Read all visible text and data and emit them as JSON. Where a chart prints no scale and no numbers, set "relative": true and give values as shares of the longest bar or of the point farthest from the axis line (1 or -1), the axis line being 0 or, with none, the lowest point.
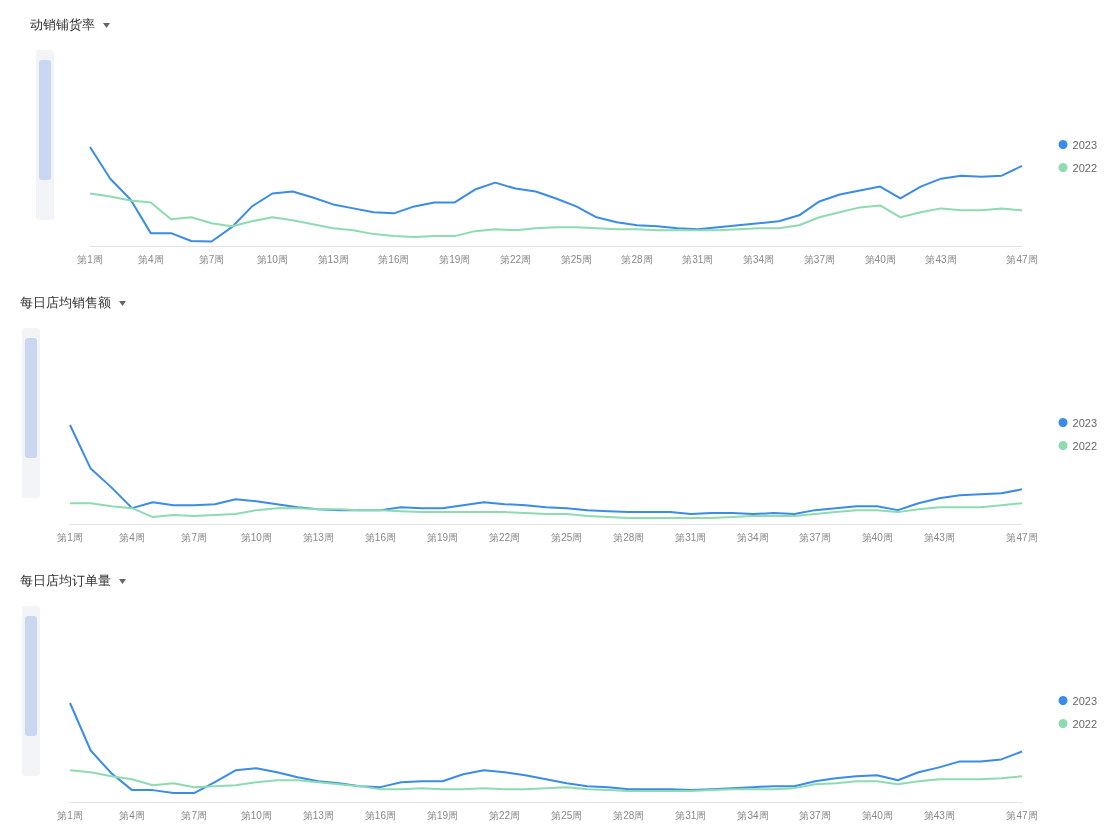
{
  "chart_data": [
    {
      "type": "line",
      "title": "动销铺货率",
      "relative": true,
      "legend": "right",
      "marker": "none",
      "categories": [
        "第1周",
        null,
        null,
        "第4周",
        null,
        null,
        "第7周",
        null,
        null,
        "第10周",
        null,
        null,
        "第13周",
        null,
        null,
        "第16周",
        null,
        null,
        "第19周",
        null,
        null,
        "第22周",
        null,
        null,
        "第25周",
        null,
        null,
        "第28周",
        null,
        null,
        "第31周",
        null,
        null,
        "第34周",
        null,
        null,
        "第37周",
        null,
        null,
        "第40周",
        null,
        null,
        "第43周",
        null,
        null,
        null,
        "第47周"
      ],
      "series": [
        {
          "name": "2023",
          "color": "#3a8ce6",
          "values": [
            1,
            0.68,
            0.47,
            0.13,
            0.13,
            0.05,
            0.045,
            0.19,
            0.4,
            0.53,
            0.55,
            0.49,
            0.42,
            0.38,
            0.34,
            0.33,
            0.4,
            0.44,
            0.44,
            0.57,
            0.64,
            0.58,
            0.55,
            0.48,
            0.4,
            0.29,
            0.24,
            0.21,
            0.2,
            0.18,
            0.17,
            0.19,
            0.21,
            0.23,
            0.25,
            0.31,
            0.45,
            0.52,
            0.56,
            0.6,
            0.48,
            0.6,
            0.68,
            0.71,
            0.7,
            0.71,
            0.81
          ]
        },
        {
          "name": "2022",
          "color": "#8edbb0",
          "values": [
            0.53,
            0.5,
            0.46,
            0.44,
            0.27,
            0.29,
            0.23,
            0.2,
            0.25,
            0.29,
            0.26,
            0.22,
            0.18,
            0.16,
            0.12,
            0.1,
            0.09,
            0.1,
            0.1,
            0.15,
            0.17,
            0.16,
            0.18,
            0.19,
            0.19,
            0.18,
            0.17,
            0.17,
            0.16,
            0.16,
            0.16,
            0.16,
            0.17,
            0.18,
            0.18,
            0.21,
            0.29,
            0.34,
            0.39,
            0.41,
            0.29,
            0.34,
            0.38,
            0.36,
            0.36,
            0.38,
            0.36
          ]
        }
      ]
    },
    {
      "type": "line",
      "title": "每日店均销售额",
      "relative": true,
      "legend": "right",
      "marker": "none",
      "categories": [
        "第1周",
        null,
        null,
        "第4周",
        null,
        null,
        "第7周",
        null,
        null,
        "第10周",
        null,
        null,
        "第13周",
        null,
        null,
        "第16周",
        null,
        null,
        "第19周",
        null,
        null,
        "第22周",
        null,
        null,
        "第25周",
        null,
        null,
        "第28周",
        null,
        null,
        "第31周",
        null,
        null,
        "第34周",
        null,
        null,
        "第37周",
        null,
        null,
        "第40周",
        null,
        null,
        "第43周",
        null,
        null,
        null,
        "第47周"
      ],
      "series": [
        {
          "name": "2023",
          "color": "#3a8ce6",
          "values": [
            1,
            0.56,
            0.37,
            0.16,
            0.22,
            0.19,
            0.19,
            0.2,
            0.25,
            0.23,
            0.2,
            0.17,
            0.15,
            0.14,
            0.14,
            0.14,
            0.17,
            0.16,
            0.16,
            0.19,
            0.22,
            0.2,
            0.19,
            0.17,
            0.16,
            0.14,
            0.13,
            0.12,
            0.12,
            0.12,
            0.1,
            0.11,
            0.11,
            0.1,
            0.11,
            0.1,
            0.14,
            0.16,
            0.18,
            0.18,
            0.14,
            0.21,
            0.26,
            0.29,
            0.3,
            0.31,
            0.35
          ]
        },
        {
          "name": "2022",
          "color": "#8edbb0",
          "values": [
            0.21,
            0.21,
            0.18,
            0.16,
            0.07,
            0.09,
            0.08,
            0.09,
            0.1,
            0.14,
            0.16,
            0.16,
            0.15,
            0.15,
            0.14,
            0.14,
            0.13,
            0.12,
            0.12,
            0.12,
            0.12,
            0.12,
            0.11,
            0.1,
            0.1,
            0.08,
            0.07,
            0.06,
            0.06,
            0.06,
            0.06,
            0.06,
            0.07,
            0.08,
            0.08,
            0.08,
            0.1,
            0.12,
            0.14,
            0.14,
            0.12,
            0.15,
            0.17,
            0.17,
            0.17,
            0.19,
            0.21
          ]
        }
      ]
    },
    {
      "type": "line",
      "title": "每日店均订单量",
      "relative": true,
      "legend": "right",
      "marker": "none",
      "categories": [
        "第1周",
        null,
        null,
        "第4周",
        null,
        null,
        "第7周",
        null,
        null,
        "第10周",
        null,
        null,
        "第13周",
        null,
        null,
        "第16周",
        null,
        null,
        "第19周",
        null,
        null,
        "第22周",
        null,
        null,
        "第25周",
        null,
        null,
        "第28周",
        null,
        null,
        "第31周",
        null,
        null,
        "第34周",
        null,
        null,
        "第37周",
        null,
        null,
        "第40周",
        null,
        null,
        "第43周",
        null,
        null,
        null,
        "第47周"
      ],
      "series": [
        {
          "name": "2023",
          "color": "#3a8ce6",
          "values": [
            1,
            0.52,
            0.29,
            0.12,
            0.12,
            0.09,
            0.09,
            0.2,
            0.32,
            0.34,
            0.3,
            0.25,
            0.21,
            0.19,
            0.16,
            0.15,
            0.2,
            0.21,
            0.21,
            0.28,
            0.32,
            0.3,
            0.27,
            0.23,
            0.19,
            0.16,
            0.15,
            0.13,
            0.13,
            0.13,
            0.12,
            0.13,
            0.14,
            0.15,
            0.16,
            0.16,
            0.21,
            0.24,
            0.26,
            0.27,
            0.22,
            0.3,
            0.35,
            0.41,
            0.41,
            0.43,
            0.51
          ]
        },
        {
          "name": "2022",
          "color": "#8edbb0",
          "values": [
            0.32,
            0.3,
            0.26,
            0.23,
            0.17,
            0.19,
            0.15,
            0.16,
            0.17,
            0.2,
            0.22,
            0.22,
            0.2,
            0.18,
            0.16,
            0.13,
            0.13,
            0.14,
            0.13,
            0.13,
            0.14,
            0.13,
            0.13,
            0.14,
            0.15,
            0.13,
            0.12,
            0.11,
            0.11,
            0.11,
            0.11,
            0.12,
            0.13,
            0.13,
            0.13,
            0.14,
            0.18,
            0.19,
            0.21,
            0.21,
            0.18,
            0.21,
            0.23,
            0.23,
            0.23,
            0.24,
            0.26
          ]
        }
      ]
    }
  ]
}
